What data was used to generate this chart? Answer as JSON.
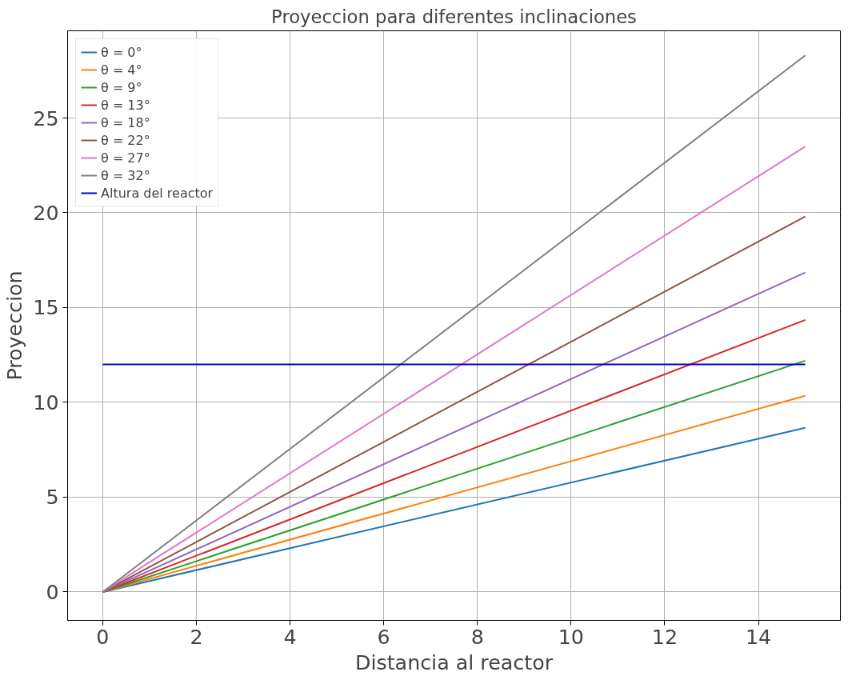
{
  "chart_data": {
    "type": "line",
    "title": "Proyeccion para diferentes inclinaciones",
    "xlabel": "Distancia al reactor",
    "ylabel": "Proyeccion",
    "x": [
      0,
      15
    ],
    "series": [
      {
        "name": "θ = 0°",
        "color": "#1f77b4",
        "values": [
          0,
          8.66
        ]
      },
      {
        "name": "θ = 4°",
        "color": "#ff7f0e",
        "values": [
          0,
          10.35
        ]
      },
      {
        "name": "θ = 9°",
        "color": "#2ca02c",
        "values": [
          0,
          12.2
        ]
      },
      {
        "name": "θ = 13°",
        "color": "#d62728",
        "values": [
          0,
          14.35
        ]
      },
      {
        "name": "θ = 18°",
        "color": "#9467bd",
        "values": [
          0,
          16.85
        ]
      },
      {
        "name": "θ = 22°",
        "color": "#8c564b",
        "values": [
          0,
          19.8
        ]
      },
      {
        "name": "θ = 27°",
        "color": "#e377c2",
        "values": [
          0,
          23.5
        ]
      },
      {
        "name": "θ = 32°",
        "color": "#7f7f7f",
        "values": [
          0,
          28.3
        ]
      },
      {
        "name": "Altura del reactor",
        "color": "#0000cc",
        "values": [
          12,
          12
        ]
      }
    ],
    "xlim": [
      -0.75,
      15.75
    ],
    "ylim": [
      -1.5,
      29.6
    ],
    "xticks": [
      0,
      2,
      4,
      6,
      8,
      10,
      12,
      14
    ],
    "yticks": [
      0,
      5,
      10,
      15,
      20,
      25
    ],
    "grid": true,
    "legend": "top left",
    "marker": "none",
    "line_style": "solid"
  }
}
